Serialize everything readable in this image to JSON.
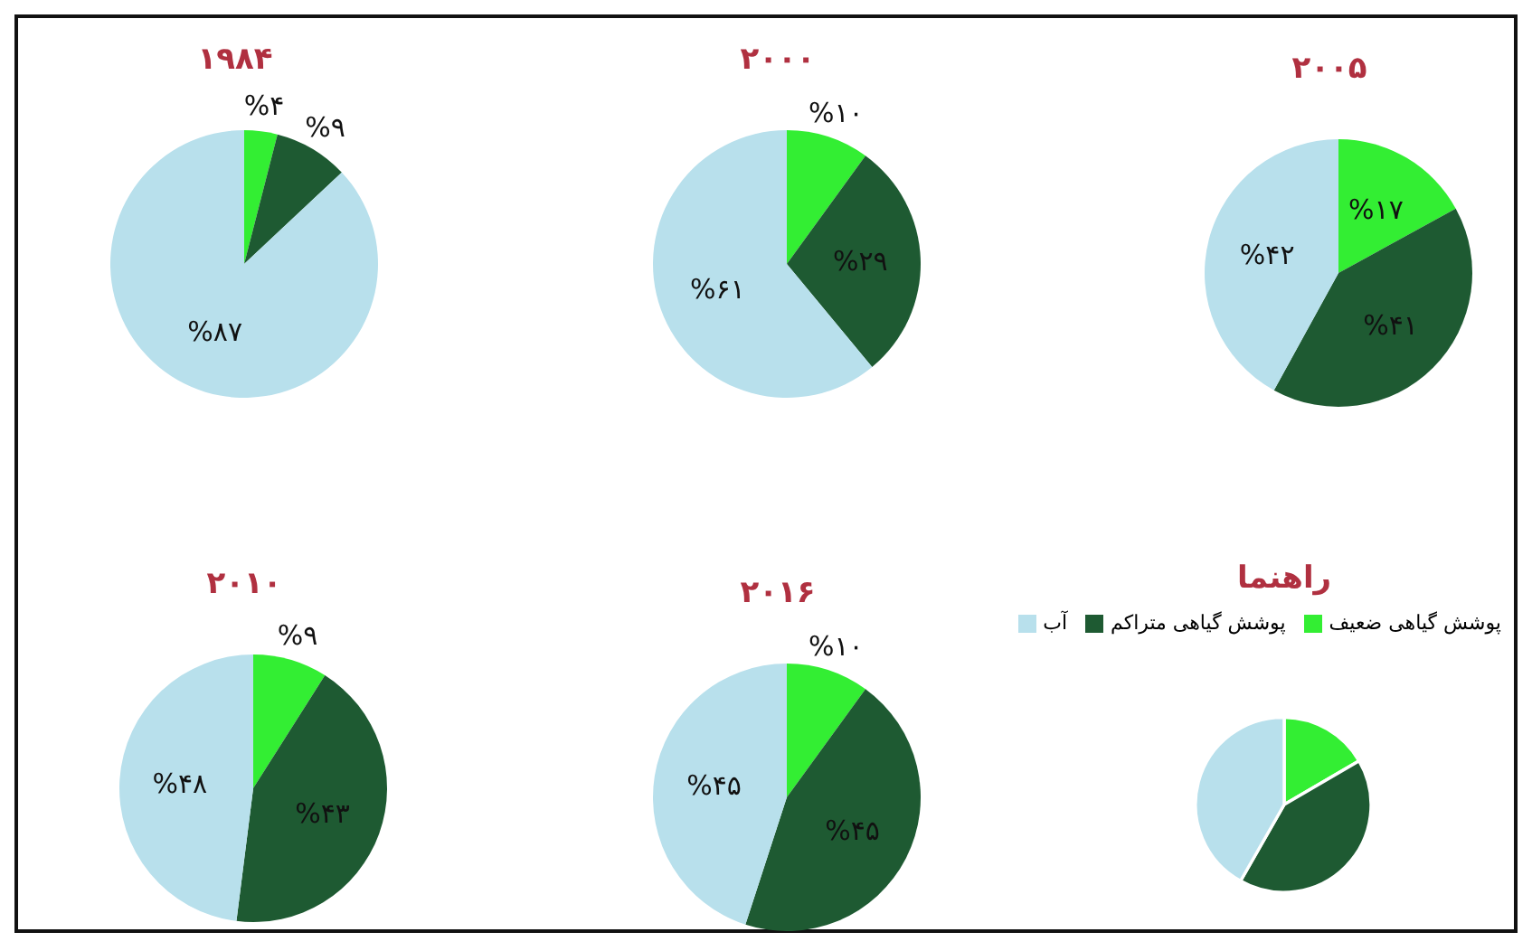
{
  "chart_data": [
    {
      "type": "pie",
      "title": "۱۹۸۴",
      "categories": [
        null,
        null,
        null
      ],
      "values": [
        4,
        9,
        87
      ],
      "value_labels": [
        "%۴",
        "%۹",
        "%۸۷"
      ],
      "colors": [
        "#33ee33",
        "#1e5a32",
        "#b8e0ec"
      ]
    },
    {
      "type": "pie",
      "title": "۲۰۰۰",
      "categories": [
        null,
        null,
        null
      ],
      "values": [
        10,
        29,
        61
      ],
      "value_labels": [
        "%۱۰",
        "%۲۹",
        "%۶۱"
      ],
      "colors": [
        "#33ee33",
        "#1e5a32",
        "#b8e0ec"
      ]
    },
    {
      "type": "pie",
      "title": "۲۰۰۵",
      "categories": [
        null,
        null,
        null
      ],
      "values": [
        17,
        41,
        42
      ],
      "value_labels": [
        "%۱۷",
        "%۴۱",
        "%۴۲"
      ],
      "colors": [
        "#33ee33",
        "#1e5a32",
        "#b8e0ec"
      ]
    },
    {
      "type": "pie",
      "title": "۲۰۱۰",
      "categories": [
        null,
        null,
        null
      ],
      "values": [
        9,
        43,
        48
      ],
      "value_labels": [
        "%۹",
        "%۴۳",
        "%۴۸"
      ],
      "colors": [
        "#33ee33",
        "#1e5a32",
        "#b8e0ec"
      ]
    },
    {
      "type": "pie",
      "title": "۲۰۱۶",
      "categories": [
        "پوشش گیاهی ضعیف",
        "پوشش گیاهی متراکم",
        "آب"
      ],
      "values": [
        10,
        45,
        45
      ],
      "value_labels": [
        "%۱۰",
        "%۴۵",
        "%۴۵"
      ],
      "colors": [
        "#33ee33",
        "#1e5a32",
        "#b8e0ec"
      ],
      "legend": "right",
      "legend_title": "راهنما"
    }
  ]
}
